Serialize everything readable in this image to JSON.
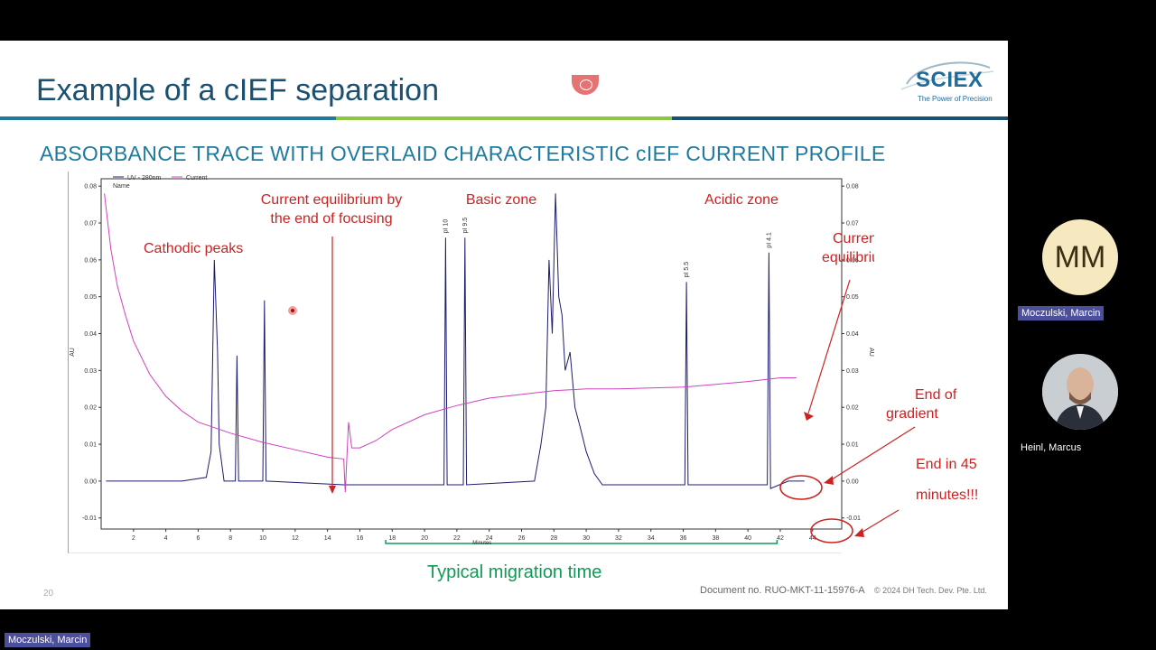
{
  "slide": {
    "title": "Example of a cIEF separation",
    "subtitle": "ABSORBANCE TRACE WITH OVERLAID CHARACTERISTIC cIEF CURRENT PROFILE",
    "logo_text": "SCIEX",
    "logo_tagline": "The Power of Precision",
    "typical_migration": "Typical migration time",
    "slide_number": "20",
    "document_no": "Document no. RUO-MKT-11-15976-A",
    "copyright": "© 2024 DH Tech. Dev. Pte. Ltd.",
    "colors": {
      "title": "#1a5070",
      "rule_blue": "#1f7a9e",
      "rule_green": "#8dc63f",
      "rule_dark": "#1a5070",
      "annotation": "#cc2222",
      "migration": "#0f9a55"
    }
  },
  "chart_data": {
    "type": "line",
    "legend": [
      "UV - 280nm",
      "Current"
    ],
    "legend_header": "Name",
    "xlabel": "Minutes",
    "ylabel_left": "AU",
    "ylabel_right": "AU",
    "xlim": [
      0,
      45.8
    ],
    "ylim": [
      -0.013,
      0.082
    ],
    "x_ticks": [
      "2",
      "4",
      "6",
      "8",
      "10",
      "12",
      "14",
      "16",
      "18",
      "20",
      "22",
      "24",
      "26",
      "28",
      "30",
      "32",
      "34",
      "36",
      "38",
      "40",
      "42",
      "44"
    ],
    "y_ticks": [
      "-0.01",
      "0.00",
      "0.01",
      "0.02",
      "0.03",
      "0.04",
      "0.05",
      "0.06",
      "0.07",
      "0.08"
    ],
    "series": [
      {
        "name": "UV - 280nm",
        "color": "#1c1c6e",
        "points": [
          [
            0.3,
            0.0
          ],
          [
            5,
            0.0
          ],
          [
            6.5,
            0.001
          ],
          [
            6.8,
            0.008
          ],
          [
            7.0,
            0.06
          ],
          [
            7.2,
            0.035
          ],
          [
            7.3,
            0.01
          ],
          [
            7.6,
            0.0
          ],
          [
            8.3,
            0.0
          ],
          [
            8.4,
            0.034
          ],
          [
            8.5,
            0.0
          ],
          [
            10.0,
            0.0
          ],
          [
            10.1,
            0.049
          ],
          [
            10.2,
            0.0
          ],
          [
            15.0,
            -0.001
          ],
          [
            21.2,
            -0.001
          ],
          [
            21.3,
            0.066
          ],
          [
            21.4,
            -0.001
          ],
          [
            22.4,
            -0.001
          ],
          [
            22.5,
            0.066
          ],
          [
            22.6,
            -0.001
          ],
          [
            26.8,
            0.0
          ],
          [
            27.2,
            0.01
          ],
          [
            27.5,
            0.02
          ],
          [
            27.7,
            0.06
          ],
          [
            27.9,
            0.04
          ],
          [
            28.1,
            0.078
          ],
          [
            28.3,
            0.05
          ],
          [
            28.5,
            0.045
          ],
          [
            28.7,
            0.03
          ],
          [
            29.0,
            0.035
          ],
          [
            29.3,
            0.02
          ],
          [
            29.6,
            0.015
          ],
          [
            30.0,
            0.008
          ],
          [
            30.5,
            0.002
          ],
          [
            31.0,
            -0.001
          ],
          [
            36.1,
            -0.001
          ],
          [
            36.2,
            0.054
          ],
          [
            36.3,
            -0.001
          ],
          [
            41.2,
            -0.001
          ],
          [
            41.3,
            0.062
          ],
          [
            41.4,
            -0.002
          ],
          [
            42.5,
            0.0
          ],
          [
            43.5,
            0.0
          ]
        ]
      },
      {
        "name": "Current",
        "color": "#d040c0",
        "points": [
          [
            0.2,
            0.078
          ],
          [
            0.6,
            0.063
          ],
          [
            1.0,
            0.053
          ],
          [
            1.5,
            0.045
          ],
          [
            2.0,
            0.038
          ],
          [
            3.0,
            0.029
          ],
          [
            4.0,
            0.023
          ],
          [
            5.0,
            0.019
          ],
          [
            6.0,
            0.016
          ],
          [
            7.0,
            0.0145
          ],
          [
            8.0,
            0.013
          ],
          [
            10.0,
            0.0105
          ],
          [
            12.0,
            0.0085
          ],
          [
            14.0,
            0.0065
          ],
          [
            15.0,
            0.006
          ],
          [
            15.1,
            -0.003
          ],
          [
            15.3,
            0.016
          ],
          [
            15.5,
            0.009
          ],
          [
            16.0,
            0.009
          ],
          [
            17.0,
            0.011
          ],
          [
            18.0,
            0.014
          ],
          [
            20.0,
            0.018
          ],
          [
            22.0,
            0.0205
          ],
          [
            24.0,
            0.0225
          ],
          [
            26.0,
            0.0235
          ],
          [
            28.0,
            0.0245
          ],
          [
            30.0,
            0.025
          ],
          [
            32.0,
            0.025
          ],
          [
            36.0,
            0.0255
          ],
          [
            40.0,
            0.027
          ],
          [
            42.0,
            0.028
          ],
          [
            43.0,
            0.028
          ]
        ]
      }
    ],
    "peak_labels": [
      {
        "text": "pI 10",
        "x": 21.3,
        "y": 0.066
      },
      {
        "text": "pI 9.5",
        "x": 22.5,
        "y": 0.066
      },
      {
        "text": "pI 5.5",
        "x": 36.2,
        "y": 0.054
      },
      {
        "text": "pI 4.1",
        "x": 41.3,
        "y": 0.062
      }
    ],
    "annotations": {
      "cathodic": "Cathodic peaks",
      "equilibrium_line1": "Current equilibrium by",
      "equilibrium_line2": "the end of focusing",
      "basic": "Basic zone",
      "acidic": "Acidic zone",
      "current_eq_line1": "Current",
      "current_eq_line2": "equilibrium",
      "end_gradient_line1": "End of",
      "end_gradient_line2": "gradient",
      "end_time_line1": "End in 45",
      "end_time_line2": "minutes!!!"
    },
    "migration_range": [
      17.6,
      41.8
    ]
  },
  "participants": {
    "initials": "MM",
    "name1": "Moczulski, Marcin",
    "name2": "Heinl, Marcus",
    "bottom_name": "Moczulski, Marcin"
  }
}
